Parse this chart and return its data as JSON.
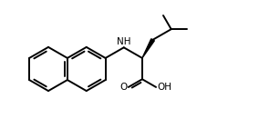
{
  "bg_color": "#ffffff",
  "line_color": "#000000",
  "line_width": 1.4,
  "fig_width": 2.84,
  "fig_height": 1.52,
  "dpi": 100,
  "NH_label": "NH",
  "OH_label": "OH",
  "O_label": "O",
  "wedge_color": "#000000"
}
